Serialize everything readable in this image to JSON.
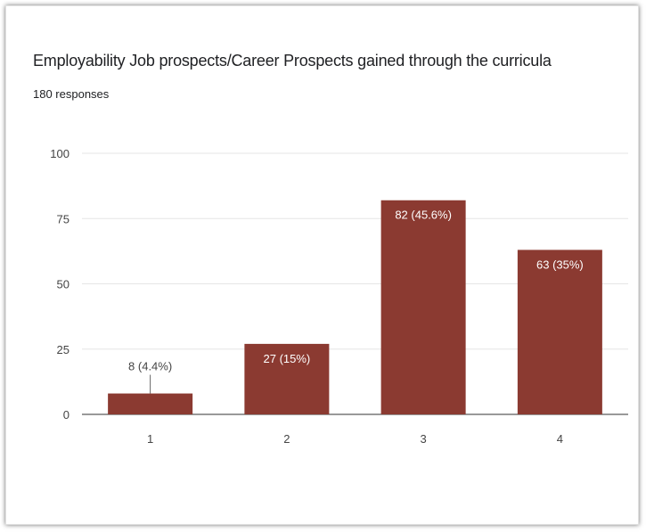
{
  "chart_data": {
    "type": "bar",
    "title": "Employability Job prospects/Career Prospects gained through the curricula",
    "subtitle": "180 responses",
    "categories": [
      "1",
      "2",
      "3",
      "4"
    ],
    "values": [
      8,
      27,
      82,
      63
    ],
    "data_labels": [
      "8 (4.4%)",
      "27 (15%)",
      "82 (45.6%)",
      "63 (35%)"
    ],
    "yticks": [
      "0",
      "25",
      "50",
      "75",
      "100"
    ],
    "ylim": [
      0,
      100
    ],
    "grid": true,
    "bar_color": "#8b3a31",
    "inside_label_color": "#ffffff",
    "outside_label_color": "#444444",
    "xlabel": "",
    "ylabel": ""
  }
}
